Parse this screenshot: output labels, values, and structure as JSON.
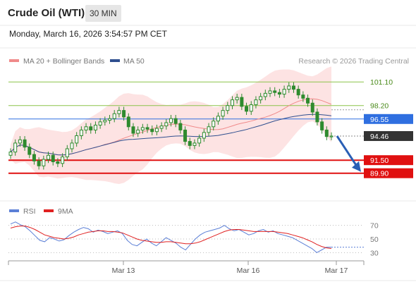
{
  "header": {
    "title": "Crude Oil (WTI)",
    "timeframe": "30 MIN",
    "datetime": "Monday, March 16, 2026 3:54:57 PM CET"
  },
  "colors": {
    "candle": "#2e8b2e",
    "bollinger_fill": "#fde3e3",
    "ma20": "#f08a8a",
    "ma50": "#2f4f8f",
    "resistance_green": "#8bc34a",
    "pivot_blue": "#2f6fe0",
    "support_red": "#e01010",
    "price_dark": "#333333",
    "arrow": "#2a5fb5",
    "rsi": "#5b7fd6",
    "rsi_ma": "#e02020"
  },
  "legend": {
    "ma20_label": "MA 20 + Bollinger Bands",
    "ma50_label": "MA 50",
    "credit": "Research © 2026 Trading Central"
  },
  "rsi_legend": {
    "rsi_label": "RSI",
    "ma_label": "9MA"
  },
  "chart_data": [
    {
      "type": "candlestick",
      "title": "",
      "series": [
        {
          "name": "MA 20 + Bollinger Bands"
        },
        {
          "name": "MA 50"
        }
      ],
      "levels": [
        {
          "label": "101.10",
          "value": 101.1,
          "style": "resistance"
        },
        {
          "label": "98.20",
          "value": 98.2,
          "style": "resistance"
        },
        {
          "label": "96.55",
          "value": 96.55,
          "style": "pivot"
        },
        {
          "label": "94.46",
          "value": 94.46,
          "style": "last"
        },
        {
          "label": "91.50",
          "value": 91.5,
          "style": "support"
        },
        {
          "label": "89.90",
          "value": 89.9,
          "style": "support"
        }
      ],
      "close_series": [
        92.5,
        93.6,
        94.0,
        93.1,
        92.2,
        91.4,
        90.8,
        91.6,
        92.1,
        91.3,
        91.1,
        91.9,
        92.9,
        93.6,
        94.5,
        95.2,
        95.6,
        95.2,
        95.8,
        96.2,
        96.4,
        96.6,
        97.2,
        97.6,
        96.8,
        95.6,
        94.8,
        95.2,
        95.5,
        95.3,
        95.0,
        95.4,
        95.7,
        96.1,
        96.6,
        96.0,
        95.2,
        93.8,
        93.3,
        93.6,
        94.2,
        94.9,
        95.6,
        96.3,
        96.9,
        97.6,
        98.2,
        98.9,
        99.2,
        98.1,
        97.5,
        98.3,
        98.9,
        99.3,
        99.7,
        100.0,
        99.8,
        99.6,
        100.2,
        100.6,
        100.2,
        99.5,
        99.1,
        98.5,
        97.4,
        96.2,
        95.2,
        94.4,
        94.46
      ],
      "ylim": [
        86.5,
        102.5
      ],
      "x_ticks": [
        "Mar 13",
        "Mar 16",
        "Mar 17"
      ]
    },
    {
      "type": "line",
      "title": "",
      "series": [
        {
          "name": "RSI",
          "values": [
            72,
            75,
            71,
            68,
            62,
            55,
            48,
            46,
            52,
            50,
            47,
            49,
            55,
            60,
            64,
            67,
            65,
            60,
            63,
            61,
            58,
            60,
            62,
            58,
            48,
            42,
            40,
            45,
            50,
            44,
            40,
            46,
            52,
            48,
            44,
            38,
            34,
            42,
            50,
            56,
            60,
            62,
            64,
            66,
            70,
            65,
            62,
            64,
            60,
            56,
            58,
            62,
            64,
            60,
            62,
            58,
            56,
            54,
            52,
            48,
            44,
            40,
            36,
            30,
            34,
            38,
            38
          ]
        },
        {
          "name": "9MA",
          "values": [
            66,
            68,
            69,
            69,
            67,
            64,
            60,
            56,
            54,
            52,
            51,
            50,
            51,
            53,
            56,
            58,
            60,
            61,
            62,
            62,
            61,
            61,
            60,
            59,
            56,
            53,
            50,
            48,
            47,
            46,
            45,
            45,
            46,
            46,
            45,
            44,
            43,
            43,
            44,
            46,
            49,
            52,
            55,
            58,
            61,
            63,
            64,
            64,
            63,
            62,
            61,
            61,
            61,
            61,
            61,
            60,
            59,
            58,
            56,
            54,
            52,
            49,
            46,
            42,
            39,
            37,
            36
          ]
        }
      ],
      "y_ticks": [
        "70",
        "50",
        "30"
      ],
      "ylim": [
        20,
        80
      ]
    }
  ]
}
